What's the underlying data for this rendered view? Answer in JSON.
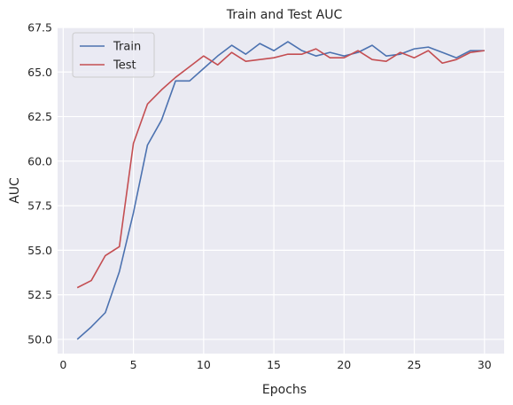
{
  "chart_data": {
    "type": "line",
    "title": "Train and Test AUC",
    "xlabel": "Epochs",
    "ylabel": "AUC",
    "xlim": [
      -0.4,
      31.4
    ],
    "ylim": [
      49.2,
      67.5
    ],
    "xticks": [
      0,
      5,
      10,
      15,
      20,
      25,
      30
    ],
    "xtick_labels": [
      "0",
      "5",
      "10",
      "15",
      "20",
      "25",
      "30"
    ],
    "yticks": [
      50.0,
      52.5,
      55.0,
      57.5,
      60.0,
      62.5,
      65.0,
      67.5
    ],
    "ytick_labels": [
      "50.0",
      "52.5",
      "55.0",
      "57.5",
      "60.0",
      "62.5",
      "65.0",
      "67.5"
    ],
    "grid": true,
    "legend_position": "top-left",
    "background": "#eaeaf2",
    "x": [
      1,
      2,
      3,
      4,
      5,
      6,
      7,
      8,
      9,
      10,
      11,
      12,
      13,
      14,
      15,
      16,
      17,
      18,
      19,
      20,
      21,
      22,
      23,
      24,
      25,
      26,
      27,
      28,
      29,
      30
    ],
    "series": [
      {
        "name": "Train",
        "color": "#4c72b0",
        "values": [
          50.0,
          50.7,
          51.5,
          53.8,
          57.1,
          60.9,
          62.3,
          64.5,
          64.5,
          65.2,
          65.9,
          66.5,
          66.0,
          66.6,
          66.2,
          66.7,
          66.2,
          65.9,
          66.1,
          65.9,
          66.1,
          66.5,
          65.9,
          66.0,
          66.3,
          66.4,
          66.1,
          65.8,
          66.2,
          66.2
        ]
      },
      {
        "name": "Test",
        "color": "#c44e52",
        "values": [
          52.9,
          53.3,
          54.7,
          55.2,
          61.0,
          63.2,
          64.0,
          64.7,
          65.3,
          65.9,
          65.4,
          66.1,
          65.6,
          65.7,
          65.8,
          66.0,
          66.0,
          66.3,
          65.8,
          65.8,
          66.2,
          65.7,
          65.6,
          66.1,
          65.8,
          66.2,
          65.5,
          65.7,
          66.1,
          66.2
        ]
      }
    ]
  }
}
